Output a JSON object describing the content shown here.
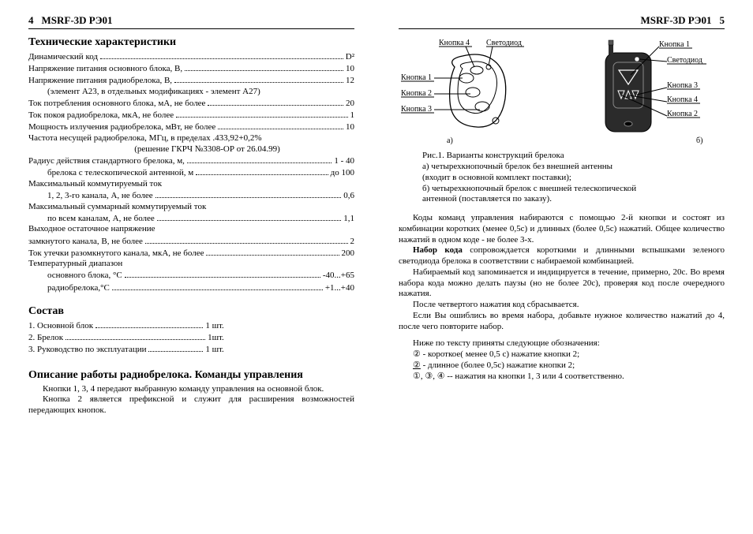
{
  "left": {
    "header": {
      "page": "4",
      "title": "MSRF-3D    РЭ01"
    },
    "sec1_title": "Технические характеристики",
    "specs": [
      {
        "label": "Динамический код",
        "value": "D²",
        "indent": 0
      },
      {
        "label": "Напряжение питания основного блока, В,",
        "value": "10",
        "indent": 0
      },
      {
        "label": "Напряжение питания радиобрелока, В,",
        "value": "12",
        "indent": 0
      },
      {
        "label": "(элемент А23, в отдельных модификациях -  элемент А27)",
        "value": "",
        "indent": 1,
        "nodots": true
      },
      {
        "label": "Ток потребления основного блока, мА,  не более",
        "value": "20",
        "indent": 0
      },
      {
        "label": "Ток покоя радиобрелока, мкА, не более",
        "value": "1",
        "indent": 0
      },
      {
        "label": "Мощность излучения радиобрелока, мВт, не более",
        "value": "10",
        "indent": 0
      },
      {
        "label": "Частота несущей радиобрелока, МГц,  в пределах .433,92+0,2%",
        "value": "",
        "indent": 0,
        "nodots": true
      },
      {
        "label": "(решение ГКРЧ №3308-ОР от 26.04.99)",
        "value": "",
        "indent": 2,
        "nodots": true,
        "center": true
      },
      {
        "label": "Радиус действия стандартного брелока, м,",
        "value": "1 - 40",
        "indent": 0
      },
      {
        "label": "брелока с телескопической антенной, м",
        "value": "до 100",
        "indent": 1
      },
      {
        "label": "Максимальный коммутируемый ток",
        "value": "",
        "indent": 0,
        "nodots": true
      },
      {
        "label": "1, 2, 3-го канала, А, не более",
        "value": "0,6",
        "indent": 1
      },
      {
        "label": "Максимальный суммарный коммутируемый ток",
        "value": "",
        "indent": 0,
        "nodots": true
      },
      {
        "label": "по всем каналам, А, не более",
        "value": "1,1",
        "indent": 1
      },
      {
        "label": "Выходное остаточное напряжение",
        "value": "",
        "indent": 0,
        "nodots": true
      },
      {
        "label": "замкнутого канала, В, не более",
        "value": "2",
        "indent": 0
      },
      {
        "label": "Ток утечки разомкнутого канала, мкА, не более",
        "value": "200",
        "indent": 0
      },
      {
        "label": "Температурный диапазон",
        "value": "",
        "indent": 0,
        "nodots": true
      },
      {
        "label": "основного блока, °С",
        "value": "-40...+65",
        "indent": 1
      },
      {
        "label": "радиобрелока,°С",
        "value": "+1...+40",
        "indent": 1
      }
    ],
    "sec2_title": "Состав",
    "contents": [
      {
        "label": "1. Основной блок",
        "value": "1 шт."
      },
      {
        "label": "2. Брелок",
        "value": "1шт."
      },
      {
        "label": "3. Руководство по эксплуатации",
        "value": "1 шт."
      }
    ],
    "sec3_title": "Описание работы радиобрелока. Команды управления",
    "sec3_p1": "Кнопки 1, 3, 4 передают выбранную команду управления на основной блок.",
    "sec3_p2": "Кнопка 2 является префиксной и служит для расширения возможностей передающих кнопок."
  },
  "right": {
    "header": {
      "page": "5",
      "title": "MSRF-3D    РЭ01"
    },
    "fig": {
      "a": {
        "labels": {
          "btn1": "Кнопка 1",
          "btn2": "Кнопка 2",
          "btn3": "Кнопка 3",
          "btn4": "Кнопка 4",
          "led": "Светодиод"
        },
        "letter": "а)"
      },
      "b": {
        "labels": {
          "btn1": "Кнопка 1",
          "btn2": "Кнопка 2",
          "btn3": "Кнопка 3",
          "btn4": "Кнопка 4",
          "led": "Светодиод"
        },
        "letter": "б)"
      }
    },
    "figcap": {
      "l1": "Рис.1.   Варианты конструкций брелока",
      "l2": "а) четырехкнопочный брелок без внешней антенны",
      "l3": "(входит в основной комплект поставки);",
      "l4": "б) четырехкнопочный брелок с внешней телескопической",
      "l5": "антенной (поставляется по заказу)."
    },
    "p1": "Коды команд управления набираются с помощью 2-й кнопки и состоят из комбинации коротких (менее  0,5с) и длинных (более 0,5с) нажатий. Общее количество нажатий в одном коде - не более 3-х.",
    "p2a": "Набор кода",
    "p2b": " сопровождается короткими и длинными вспышками зеленого светодиода брелока в соответствии с набираемой комбинацией.",
    "p3": "Набираемый код запоминается и индицируется в течение, примерно, 20с. Во время набора кода можно делать паузы (но не более 20с), проверяя код после очередного нажатия.",
    "p4": "После четвертого нажатия код сбрасывается.",
    "p5": "Если Вы ошиблись во время набора, добавьте нужное количество нажатий до 4, после чего повторите набор.",
    "legend_intro": "Ниже по тексту приняты следующие обозначения:",
    "legend": {
      "l1_sym": "②",
      "l1": " - короткое( менее 0,5 с) нажатие кнопки 2;",
      "l2_sym": "②",
      "l2": " - длинное (более 0,5с) нажатие кнопки 2;",
      "l3_sym": "①, ③, ④",
      "l3": " -- нажатия на кнопки 1, 3 или 4 соответственно."
    }
  }
}
